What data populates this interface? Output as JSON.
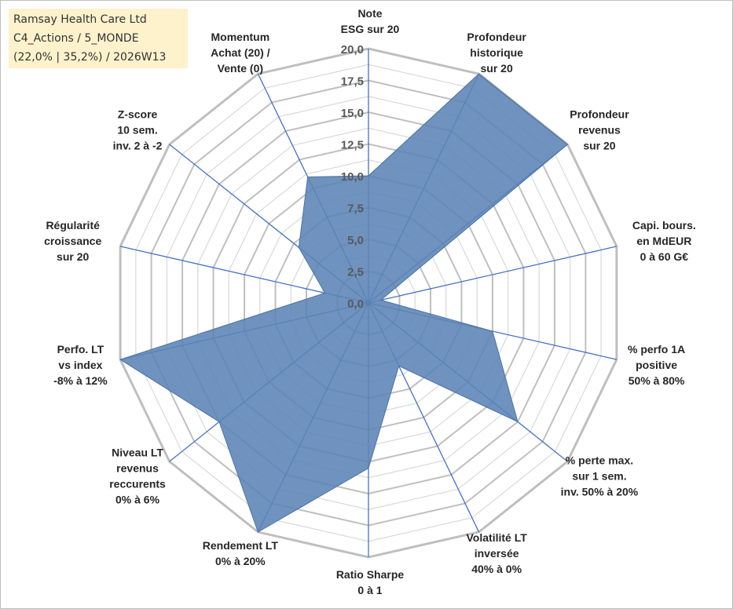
{
  "header": {
    "lines": [
      "Ramsay Health Care Ltd",
      "C4_Actions / 5_MONDE",
      "(22,0% | 35,2%) / 2026W13"
    ]
  },
  "colors": {
    "fill": "#5b84b5",
    "fill_stroke": "#4a72a6",
    "spoke": "#4472c4",
    "ring_major": "#bfbfbf",
    "ring_minor": "#d9d9d9"
  },
  "chart_data": {
    "type": "radar",
    "title": "Ramsay Health Care Ltd",
    "rmin": 0,
    "rmax": 20,
    "ticks": [
      "0,0",
      "2,5",
      "5,0",
      "7,5",
      "10,0",
      "12,5",
      "15,0",
      "17,5",
      "20,0"
    ],
    "tick_values": [
      0,
      2.5,
      5,
      7.5,
      10,
      12.5,
      15,
      17.5,
      20
    ],
    "minor_step": 1.25,
    "grid": true,
    "legend": "none",
    "axes": [
      {
        "label": [
          "Note",
          "ESG sur 20"
        ],
        "value": 10.0
      },
      {
        "label": [
          "Profondeur",
          "historique",
          "sur 20"
        ],
        "value": 20.0
      },
      {
        "label": [
          "Profondeur",
          "revenus",
          "sur 20"
        ],
        "value": 20.0
      },
      {
        "label": [
          "Capi. bours.",
          "en MdEUR",
          "0 à 60 G€"
        ],
        "value": 1.0
      },
      {
        "label": [
          "% perfo 1A",
          "positive",
          "50% à 80%"
        ],
        "value": 10.0
      },
      {
        "label": [
          "% perte max.",
          "sur 1 sem.",
          "inv. 50% à 20%"
        ],
        "value": 15.0
      },
      {
        "label": [
          "Volatilité LT",
          "inversée",
          "40% à 0%"
        ],
        "value": 5.5
      },
      {
        "label": [
          "Ratio Sharpe",
          "0 à 1"
        ],
        "value": 13.0
      },
      {
        "label": [
          "Rendement LT",
          "0% à 20%"
        ],
        "value": 20.0
      },
      {
        "label": [
          "Niveau LT",
          "revenus",
          "reccurents",
          "0% à 6%"
        ],
        "value": 15.0
      },
      {
        "label": [
          "Perfo. LT",
          "vs index",
          "-8% à 12%"
        ],
        "value": 20.0
      },
      {
        "label": [
          "Régularité",
          "croissance",
          "sur 20"
        ],
        "value": 3.5
      },
      {
        "label": [
          "Z-score",
          "10 sem.",
          "inv. 2 à -2"
        ],
        "value": 7.0
      },
      {
        "label": [
          "Momentum",
          "Achat (20) /",
          "Vente (0)"
        ],
        "value": 11.0
      }
    ]
  }
}
